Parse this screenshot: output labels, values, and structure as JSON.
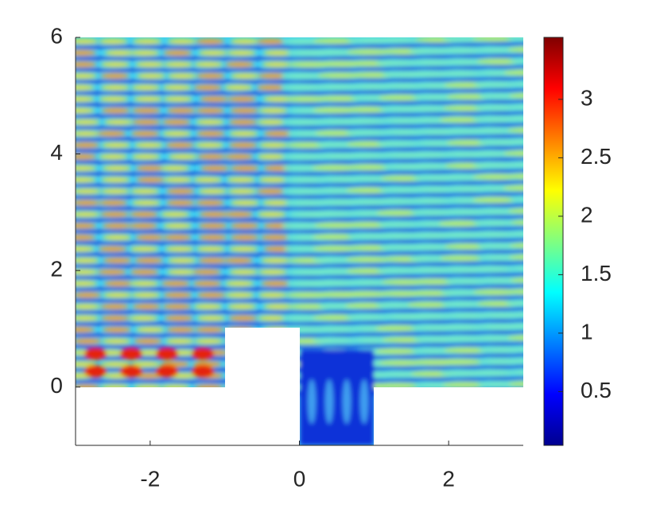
{
  "chart_data": {
    "type": "heatmap",
    "colormap": "jet",
    "xlim": [
      -3,
      3
    ],
    "xticks": [
      -2,
      0,
      2
    ],
    "ylim": [
      -1,
      6
    ],
    "yticks": [
      0,
      2,
      4,
      6
    ],
    "clim": [
      0.04,
      3.53
    ],
    "cticks": [
      0.5,
      1,
      1.5,
      2,
      2.5,
      3
    ]
  }
}
